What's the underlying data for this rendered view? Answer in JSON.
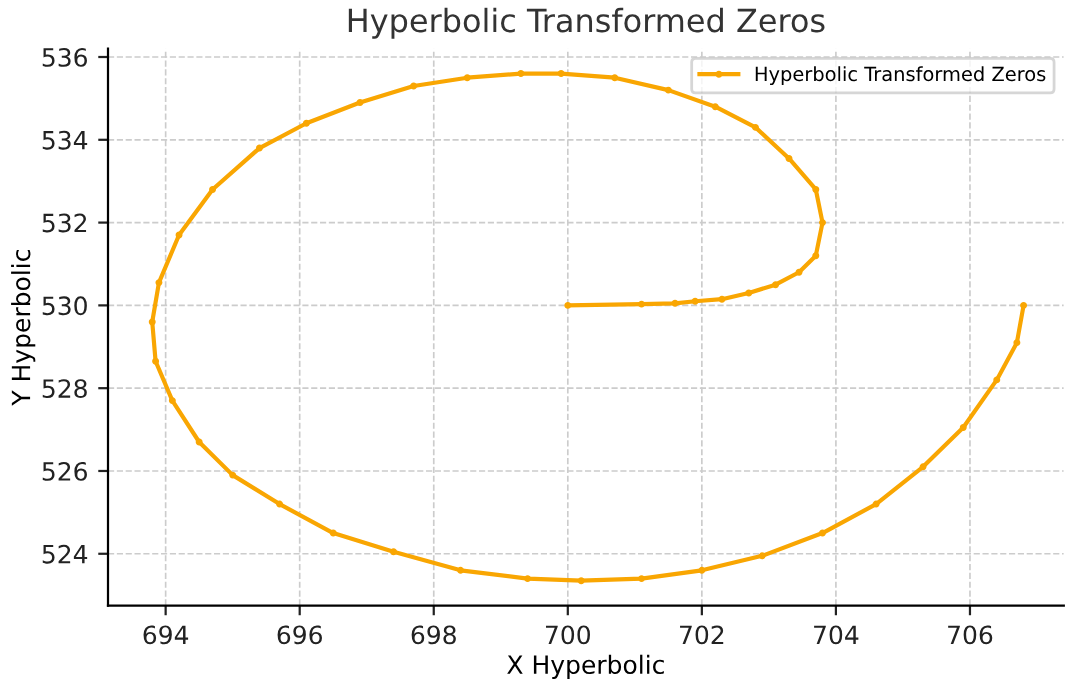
{
  "chart_data": {
    "type": "line",
    "title": "Hyperbolic Transformed Zeros",
    "xlabel": "X Hyperbolic",
    "ylabel": "Y Hyperbolic",
    "xlim": [
      693.14,
      707.4
    ],
    "ylim": [
      522.75,
      536.2
    ],
    "xticks": [
      694,
      696,
      698,
      700,
      702,
      704,
      706
    ],
    "yticks": [
      524,
      526,
      528,
      530,
      532,
      534,
      536
    ],
    "grid": true,
    "legend": "top right",
    "marker": "circle",
    "line_style": "solid",
    "series": [
      {
        "name": "Hyperbolic Transformed Zeros",
        "color": "#f9a602",
        "x": [
          700,
          701.1,
          701.6,
          701.9,
          702.3,
          702.7,
          703.1,
          703.45,
          703.7,
          703.8,
          703.7,
          703.3,
          702.8,
          702.2,
          701.5,
          700.7,
          699.9,
          699.3,
          698.5,
          697.7,
          696.9,
          696.1,
          695.4,
          694.7,
          694.2,
          693.9,
          693.8,
          693.85,
          694.1,
          694.5,
          695,
          695.7,
          696.5,
          697.4,
          698.4,
          699.4,
          700.2,
          701.1,
          702,
          702.9,
          703.8,
          704.6,
          705.3,
          705.9,
          706.4,
          706.7,
          706.8
        ],
        "values": [
          530,
          530.03,
          530.05,
          530.1,
          530.15,
          530.3,
          530.5,
          530.8,
          531.2,
          532,
          532.8,
          533.55,
          534.3,
          534.8,
          535.2,
          535.5,
          535.6,
          535.6,
          535.5,
          535.3,
          534.9,
          534.4,
          533.8,
          532.8,
          531.7,
          530.55,
          529.6,
          528.65,
          527.7,
          526.7,
          525.9,
          525.2,
          524.5,
          524.05,
          523.6,
          523.4,
          523.35,
          523.4,
          523.6,
          523.95,
          524.5,
          525.2,
          526.1,
          527.05,
          528.2,
          529.1,
          530
        ]
      }
    ]
  }
}
